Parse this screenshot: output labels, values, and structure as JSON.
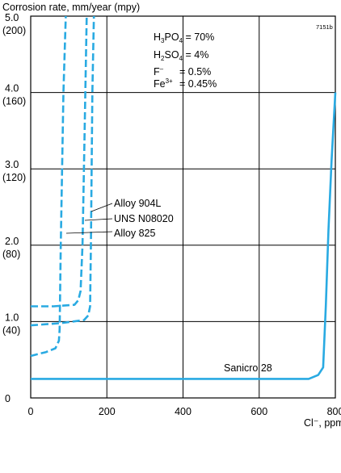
{
  "chart_data": {
    "type": "line",
    "title": "",
    "figure_code": "7151b",
    "ylabel": "Corrosion rate, mm/year (mpy)",
    "xlabel": "Cl⁻, ppm",
    "xlim": [
      0,
      800
    ],
    "ylim": [
      0,
      5
    ],
    "grid": true,
    "x_ticks": [
      {
        "value": 0,
        "label": "0"
      },
      {
        "value": 200,
        "label": "200"
      },
      {
        "value": 400,
        "label": "400"
      },
      {
        "value": 600,
        "label": "600"
      },
      {
        "value": 800,
        "label": "800"
      }
    ],
    "y_ticks": [
      {
        "value": 0,
        "label": "0",
        "sub": ""
      },
      {
        "value": 1,
        "label": "1.0",
        "sub": "(40)"
      },
      {
        "value": 2,
        "label": "2.0",
        "sub": "(80)"
      },
      {
        "value": 3,
        "label": "3.0",
        "sub": "(120)"
      },
      {
        "value": 4,
        "label": "4.0",
        "sub": "(160)"
      },
      {
        "value": 5,
        "label": "5.0",
        "sub": "(200)"
      }
    ],
    "conditions": [
      "H3PO4 = 70%",
      "H2SO4 = 4%",
      "F⁻ = 0.5%",
      "Fe3+ = 0.45%"
    ],
    "series": [
      {
        "name": "Sanicro 28",
        "style": "solid",
        "color": "#29aae2",
        "points": [
          [
            0,
            0.25
          ],
          [
            460,
            0.25
          ],
          [
            730,
            0.25
          ],
          [
            755,
            0.3
          ],
          [
            768,
            0.4
          ],
          [
            775,
            1.2
          ],
          [
            782,
            2.2
          ],
          [
            790,
            3.1
          ],
          [
            800,
            4.0
          ]
        ]
      },
      {
        "name": "Alloy 904L",
        "style": "dashed",
        "color": "#29aae2",
        "points": [
          [
            0,
            1.2
          ],
          [
            60,
            1.2
          ],
          [
            115,
            1.22
          ],
          [
            125,
            1.28
          ],
          [
            131,
            1.4
          ],
          [
            136,
            2.0
          ],
          [
            141,
            3.3
          ],
          [
            147,
            5.0
          ]
        ]
      },
      {
        "name": "UNS N08020",
        "style": "dashed",
        "color": "#29aae2",
        "points": [
          [
            0,
            0.95
          ],
          [
            80,
            0.98
          ],
          [
            140,
            1.02
          ],
          [
            151,
            1.08
          ],
          [
            156,
            1.2
          ],
          [
            158,
            2.0
          ],
          [
            162,
            4.0
          ],
          [
            166,
            5.0
          ]
        ]
      },
      {
        "name": "Alloy 825",
        "style": "dashed",
        "color": "#29aae2",
        "points": [
          [
            0,
            0.55
          ],
          [
            40,
            0.6
          ],
          [
            65,
            0.65
          ],
          [
            74,
            0.75
          ],
          [
            76,
            0.9
          ],
          [
            79,
            2.0
          ],
          [
            86,
            4.0
          ],
          [
            92,
            5.0
          ]
        ]
      }
    ]
  }
}
